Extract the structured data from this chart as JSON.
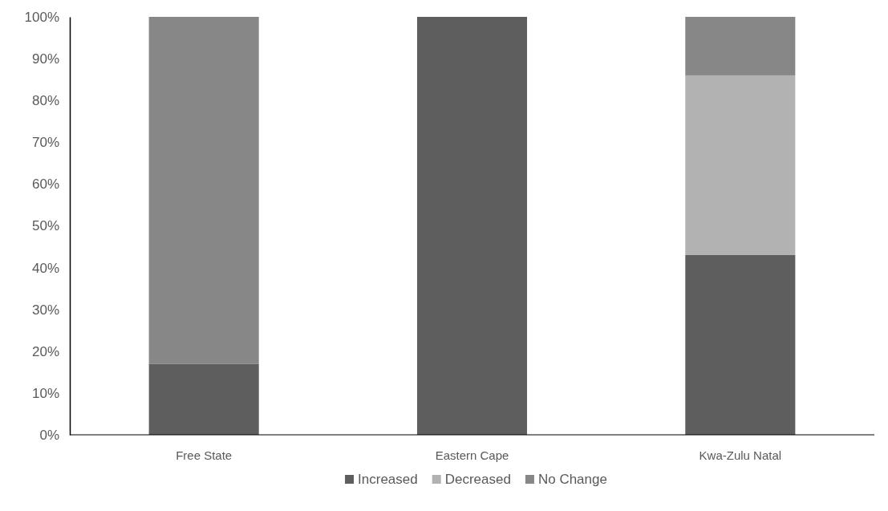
{
  "chart_data": {
    "type": "bar",
    "stacked": true,
    "categories": [
      "Free State",
      "Eastern Cape",
      "Kwa-Zulu Natal"
    ],
    "series": [
      {
        "name": "Increased",
        "color": "#5e5e5e",
        "values": [
          17,
          100,
          43
        ]
      },
      {
        "name": "Decreased",
        "color": "#b2b2b2",
        "values": [
          0,
          0,
          43
        ]
      },
      {
        "name": "No Change",
        "color": "#878787",
        "values": [
          83,
          0,
          14
        ]
      }
    ],
    "ylim": [
      0,
      100
    ],
    "yticks": [
      {
        "value": 0,
        "label": "0%"
      },
      {
        "value": 10,
        "label": "10%"
      },
      {
        "value": 20,
        "label": "20%"
      },
      {
        "value": 30,
        "label": "30%"
      },
      {
        "value": 40,
        "label": "40%"
      },
      {
        "value": 50,
        "label": "50%"
      },
      {
        "value": 60,
        "label": "60%"
      },
      {
        "value": 70,
        "label": "70%"
      },
      {
        "value": 80,
        "label": "80%"
      },
      {
        "value": 90,
        "label": "90%"
      },
      {
        "value": 100,
        "label": "100%"
      }
    ],
    "grid": false,
    "legend": "bottom"
  }
}
